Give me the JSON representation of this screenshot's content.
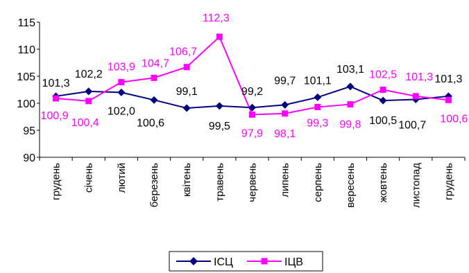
{
  "chart_data": {
    "type": "line",
    "title": "",
    "xlabel": "",
    "ylabel": "",
    "ylim": [
      90,
      115
    ],
    "yticks": [
      90,
      95,
      100,
      105,
      110,
      115
    ],
    "ytick_labels": [
      "90",
      "95",
      "100",
      "105",
      "110",
      "115"
    ],
    "grid": false,
    "legend_position": "bottom-center",
    "categories": [
      "грудень",
      "січень",
      "лютий",
      "березень",
      "квітень",
      "травень",
      "червень",
      "липень",
      "серпень",
      "вересень",
      "жовтень",
      "листопад",
      "грудень"
    ],
    "series": [
      {
        "name": "ІСЦ",
        "color": "#000080",
        "marker": "diamond",
        "values": [
          101.3,
          102.2,
          102.0,
          100.6,
          99.1,
          99.5,
          99.2,
          99.7,
          101.1,
          103.1,
          100.5,
          100.7,
          101.3
        ],
        "labels": [
          "101,3",
          "102,2",
          "102,0",
          "100,6",
          "99,1",
          "99,5",
          "99,2",
          "99,7",
          "101,1",
          "103,1",
          "100,5",
          "100,7",
          "101,3"
        ]
      },
      {
        "name": "ІЦВ",
        "color": "#ff00ff",
        "marker": "square",
        "values": [
          100.9,
          100.4,
          103.9,
          104.7,
          106.7,
          112.3,
          97.9,
          98.1,
          99.3,
          99.8,
          102.5,
          101.3,
          100.6
        ],
        "labels": [
          "100,9",
          "100,4",
          "103,9",
          "104,7",
          "106,7",
          "112,3",
          "97,9",
          "98,1",
          "99,3",
          "99,8",
          "102,5",
          "101,3",
          "100,6"
        ]
      }
    ]
  }
}
